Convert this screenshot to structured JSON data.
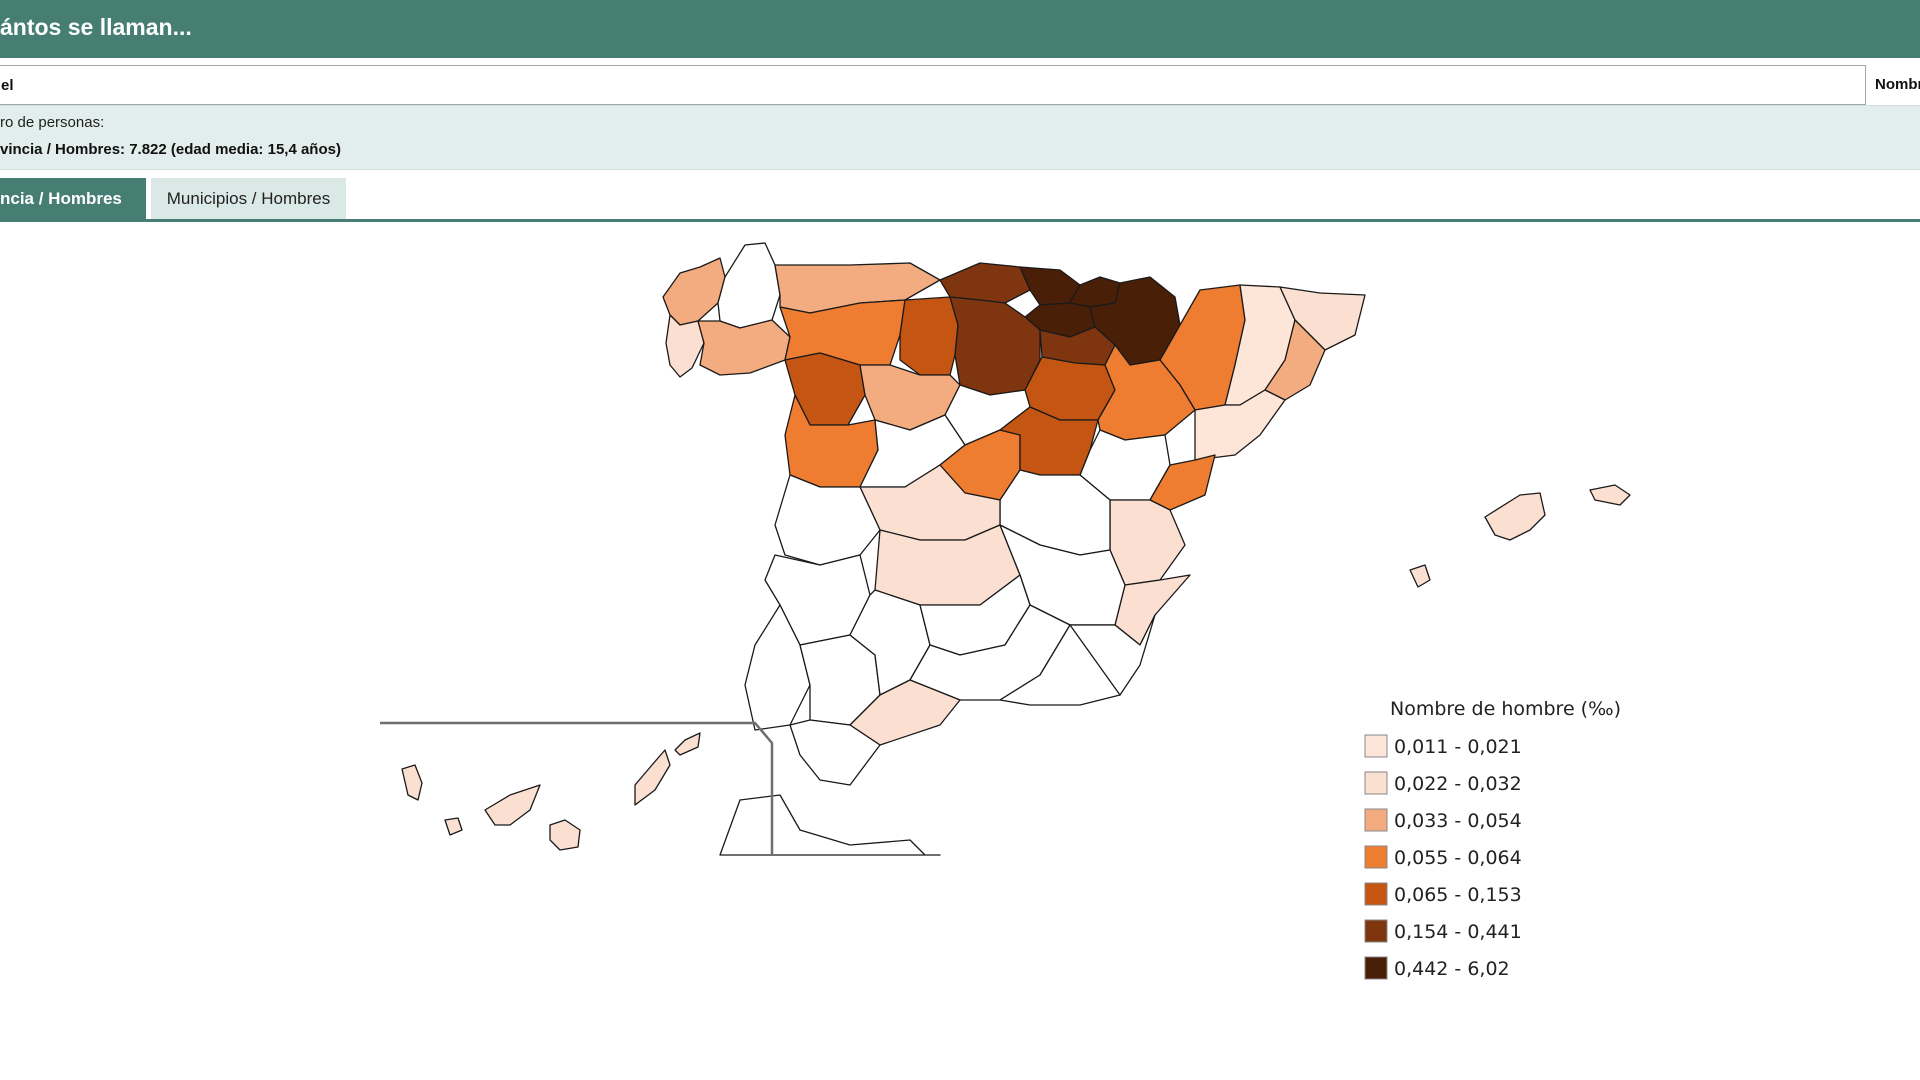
{
  "header": {
    "title": "ántos se llaman..."
  },
  "search": {
    "value": "el",
    "side_label": "Nombr"
  },
  "info": {
    "label": "ro de personas:",
    "value": "vincia / Hombres: 7.822 (edad media: 15,4 años)"
  },
  "tabs": [
    {
      "label": "ncia / Hombres",
      "active": true
    },
    {
      "label": "Municipios / Hombres",
      "active": false
    }
  ],
  "legend": {
    "title": "Nombre de hombre (‰)",
    "classes": [
      {
        "label": "0,011 - 0,021",
        "color": "#fde5d8"
      },
      {
        "label": "0,022 - 0,032",
        "color": "#fbe0d1"
      },
      {
        "label": "0,033 - 0,054",
        "color": "#f3ac80"
      },
      {
        "label": "0,055 - 0,064",
        "color": "#ee7d32"
      },
      {
        "label": "0,065 - 0,153",
        "color": "#c45512"
      },
      {
        "label": "0,154 - 0,441",
        "color": "#7f3610"
      },
      {
        "label": "0,442 - 6,02",
        "color": "#4a1f08"
      }
    ]
  },
  "colors": {
    "header_bg": "#477e74",
    "panel_bg": "#e2eeec",
    "tab_inactive_bg": "#dbe9e6",
    "no_data": "#ffffff"
  }
}
